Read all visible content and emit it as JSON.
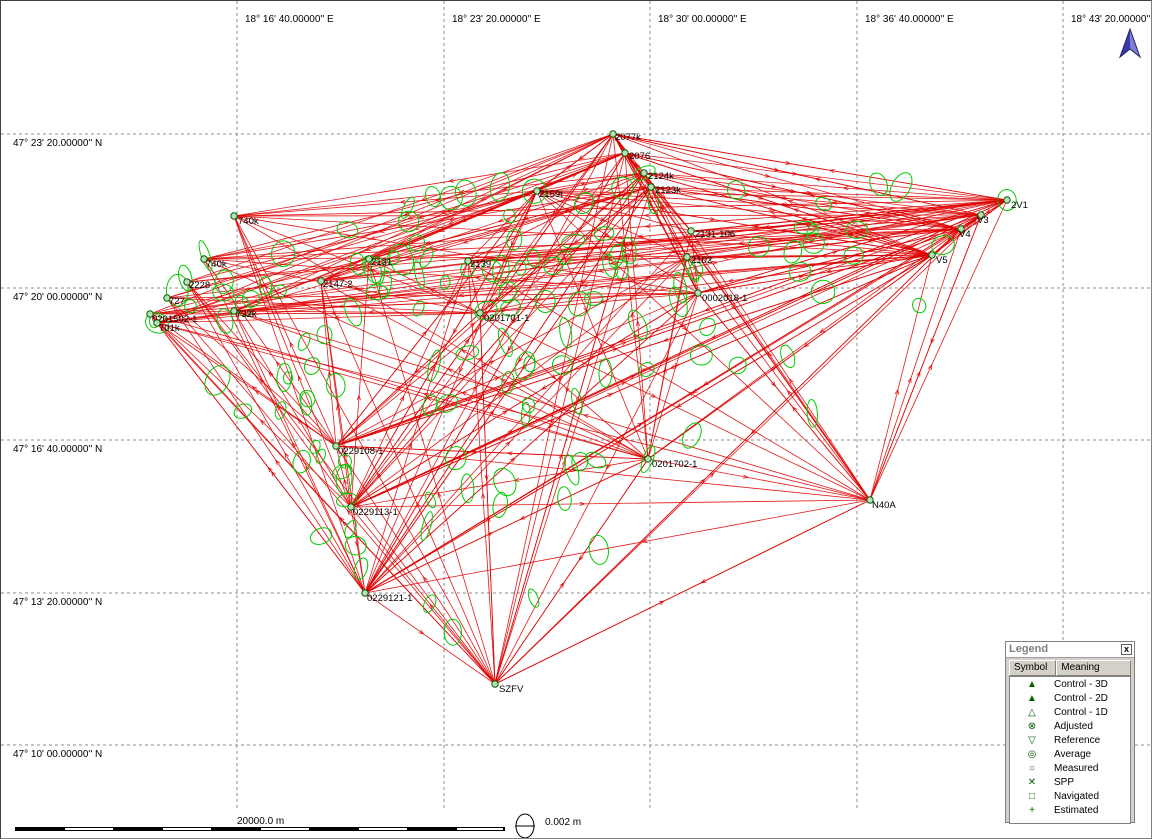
{
  "map": {
    "lon_labels": [
      "18° 16' 40.00000'' E",
      "18° 23' 20.00000'' E",
      "18° 30' 00.00000'' E",
      "18° 36' 40.00000'' E",
      "18° 43' 20.00000'' E"
    ],
    "lat_labels": [
      "47° 23' 20.00000'' N",
      "47° 20' 00.00000'' N",
      "47° 16' 40.00000'' N",
      "47° 13' 20.00000'' N",
      "47° 10' 00.00000'' N"
    ],
    "stations": [
      {
        "name": "2077k"
      },
      {
        "name": "2076"
      },
      {
        "name": "2124k"
      },
      {
        "name": "2123k"
      },
      {
        "name": "2159t"
      },
      {
        "name": "2V1"
      },
      {
        "name": "V3"
      },
      {
        "name": "V4"
      },
      {
        "name": "V5"
      },
      {
        "name": "740k"
      },
      {
        "name": "2131"
      },
      {
        "name": "2147-2"
      },
      {
        "name": "2139"
      },
      {
        "name": "2131-106"
      },
      {
        "name": "2102"
      },
      {
        "name": "0002018-1"
      },
      {
        "name": "0201701-1"
      },
      {
        "name": "740k"
      },
      {
        "name": "2228"
      },
      {
        "name": "727"
      },
      {
        "name": "732k"
      },
      {
        "name": "0201502-1"
      },
      {
        "name": "701k"
      },
      {
        "name": "0229108-1"
      },
      {
        "name": "0201702-1"
      },
      {
        "name": "N40A"
      },
      {
        "name": "0229113-1"
      },
      {
        "name": "0229121-1"
      },
      {
        "name": "SZFV"
      }
    ],
    "scale_bar_label": "20000.0 m",
    "ellipse_scale_label": "0.002 m"
  },
  "legend": {
    "title": "Legend",
    "close": "x",
    "col_symbol": "Symbol",
    "col_meaning": "Meaning",
    "items": [
      {
        "symbol": "▲",
        "meaning": "Control - 3D"
      },
      {
        "symbol": "▲",
        "meaning": "Control - 2D"
      },
      {
        "symbol": "△",
        "meaning": "Control - 1D"
      },
      {
        "symbol": "⊗",
        "meaning": "Adjusted"
      },
      {
        "symbol": "▽",
        "meaning": "Reference"
      },
      {
        "symbol": "◎",
        "meaning": "Average"
      },
      {
        "symbol": "○",
        "meaning": "Measured"
      },
      {
        "symbol": "✕",
        "meaning": "SPP"
      },
      {
        "symbol": "□",
        "meaning": "Navigated"
      },
      {
        "symbol": "+",
        "meaning": "Estimated"
      }
    ]
  },
  "colors": {
    "observation": "#e00000",
    "ellipse": "#00cc00",
    "station": "#006000"
  }
}
